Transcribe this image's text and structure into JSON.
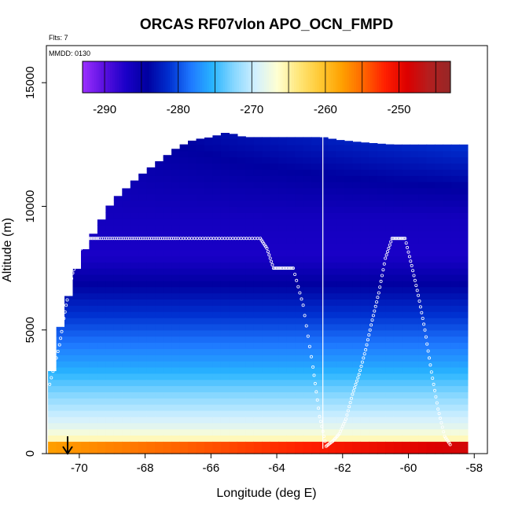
{
  "chart_data": {
    "type": "heatmap",
    "title": "ORCAS RF07vlon APO_OCN_FMPD",
    "subtitle": "Flts: 7",
    "panel_label": "MMDD: 0130",
    "xlabel": "Longitude (deg E)",
    "ylabel": "Altitude (m)",
    "xlim": [
      -71,
      -57.6
    ],
    "ylim": [
      0,
      16500
    ],
    "x_ticks": [
      -70,
      -68,
      -66,
      -64,
      -62,
      -60,
      -58
    ],
    "x_tick_labels": [
      "-70",
      "-68",
      "-66",
      "-64",
      "-62",
      "-60",
      "-58"
    ],
    "y_ticks": [
      0,
      5000,
      10000,
      15000
    ],
    "y_tick_labels": [
      "0",
      "5000",
      "10000",
      "15000"
    ],
    "colorbar": {
      "range": [
        -293,
        -243
      ],
      "ticks": [
        -290,
        -280,
        -270,
        -260,
        -250
      ],
      "tick_labels": [
        "-290",
        "-280",
        "-270",
        "-260",
        "-250"
      ],
      "colors": [
        "#9b30ff",
        "#5a10e0",
        "#1a00c8",
        "#0000a0",
        "#0030d0",
        "#1e78ff",
        "#28b4ff",
        "#87d7ff",
        "#d2f0ff",
        "#ffffd2",
        "#ffe678",
        "#ffc832",
        "#ffa000",
        "#ff6400",
        "#ff1e00",
        "#dc0000",
        "#b41e1e",
        "#962828"
      ]
    },
    "profile": {
      "lon": [
        -71,
        -70.8,
        -70.6,
        -70.3,
        -70,
        -69.7,
        -69.4,
        -69,
        -68.6,
        -68.2,
        -67.8,
        -67.4,
        -67,
        -66.5,
        -66,
        -65.5,
        -65,
        -64.6,
        -64.2,
        -62.6,
        -62.2,
        -61.5,
        -60.5,
        -59.5,
        -58.8,
        -58.3
      ],
      "top": [
        2200,
        3500,
        5000,
        6500,
        7800,
        8600,
        9300,
        10200,
        10700,
        11200,
        11600,
        12000,
        12400,
        12700,
        12800,
        13000,
        12800,
        12800,
        12800,
        12800,
        12700,
        12600,
        12500,
        12500,
        12500,
        12500
      ]
    },
    "series": [
      {
        "lon": [
          -70.9,
          -70.6,
          -70.4,
          -70.2,
          -70,
          -69.7,
          -69.4,
          -69,
          -68.6,
          -68.2,
          -67.8,
          -67.4,
          -67,
          -66.5,
          -66,
          -65.5,
          -65,
          -64.5,
          -64.3,
          -64.1,
          -63.9,
          -63.7,
          -63.5,
          -63.2,
          -62.9,
          -62.7,
          -62.5,
          -62.3,
          -62.1,
          -61.9,
          -61.7,
          -61.5,
          -61.3,
          -61.1,
          -60.9,
          -60.7,
          -60.5,
          -60.3,
          -60.1,
          -59.9,
          -59.7,
          -59.5,
          -59.3,
          -59.1,
          -58.9,
          -58.7
        ],
        "alt": [
          2800,
          4400,
          6000,
          7300,
          8200,
          8700,
          8700,
          8700,
          8700,
          8700,
          8700,
          8700,
          8700,
          8700,
          8700,
          8700,
          8700,
          8700,
          8300,
          7500,
          7500,
          7500,
          7500,
          6000,
          3500,
          1500,
          300,
          500,
          800,
          1400,
          2400,
          3200,
          4200,
          5400,
          6500,
          7900,
          8700,
          8700,
          8700,
          7600,
          6400,
          5000,
          3300,
          1800,
          700,
          300
        ]
      }
    ],
    "track_line_lon": -62.6
  }
}
